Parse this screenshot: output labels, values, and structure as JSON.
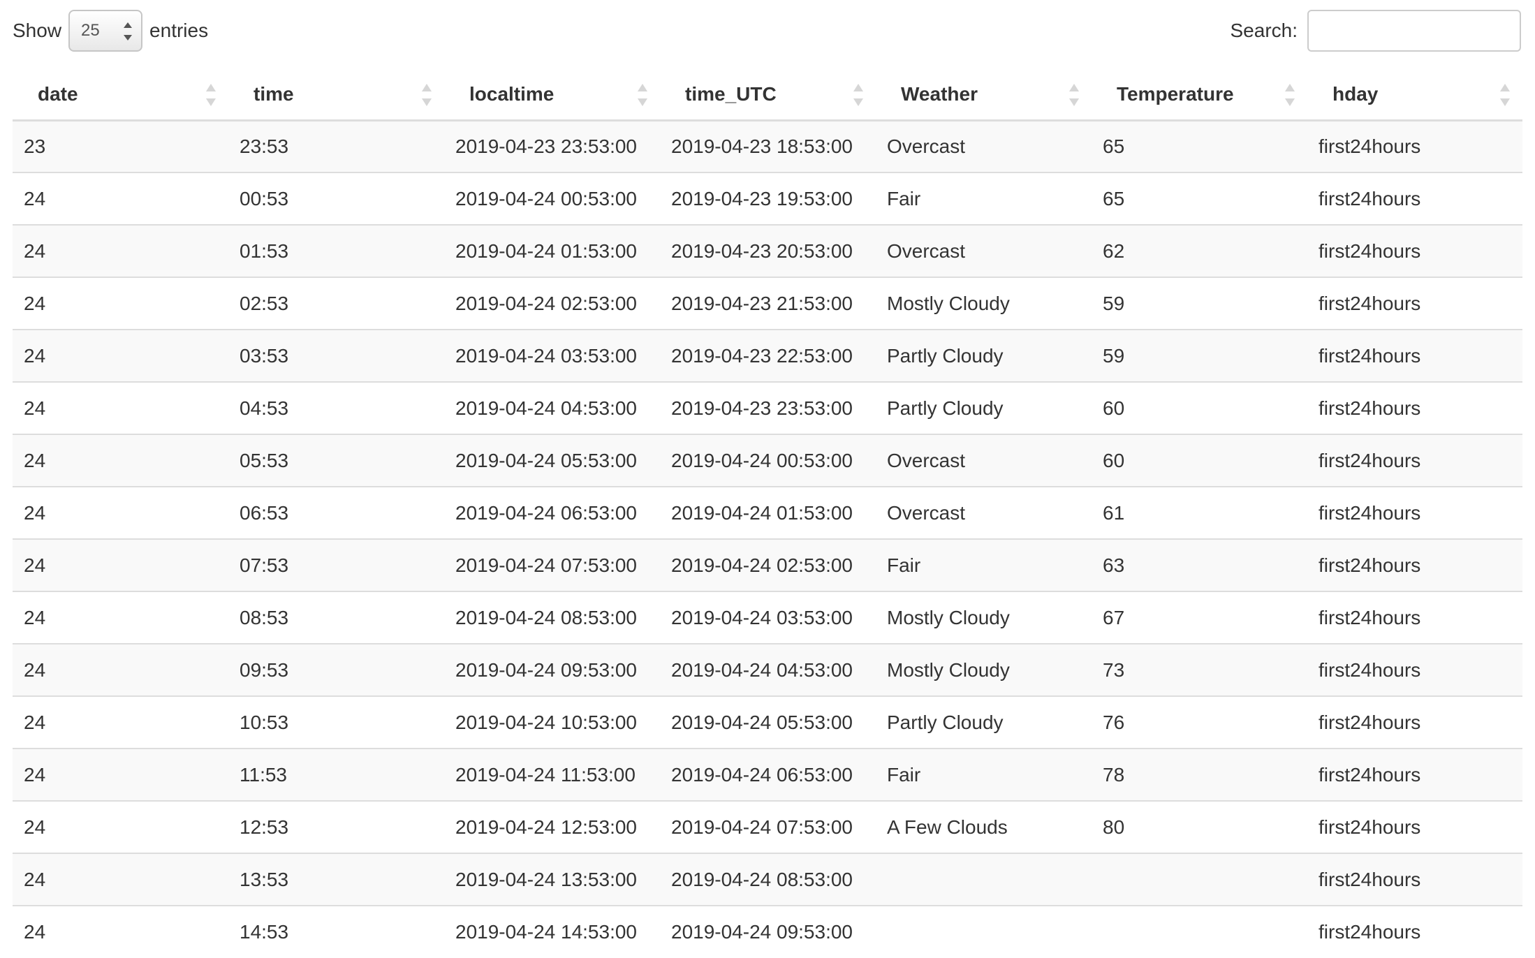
{
  "length_menu": {
    "show_label": "Show",
    "selected": "25",
    "entries_label": "entries"
  },
  "search": {
    "label": "Search:",
    "value": "",
    "placeholder": ""
  },
  "columns": [
    "date",
    "time",
    "localtime",
    "time_UTC",
    "Weather",
    "Temperature",
    "hday"
  ],
  "rows": [
    [
      "23",
      "23:53",
      "2019-04-23 23:53:00",
      "2019-04-23 18:53:00",
      "Overcast",
      "65",
      "first24hours"
    ],
    [
      "24",
      "00:53",
      "2019-04-24 00:53:00",
      "2019-04-23 19:53:00",
      "Fair",
      "65",
      "first24hours"
    ],
    [
      "24",
      "01:53",
      "2019-04-24 01:53:00",
      "2019-04-23 20:53:00",
      "Overcast",
      "62",
      "first24hours"
    ],
    [
      "24",
      "02:53",
      "2019-04-24 02:53:00",
      "2019-04-23 21:53:00",
      "Mostly Cloudy",
      "59",
      "first24hours"
    ],
    [
      "24",
      "03:53",
      "2019-04-24 03:53:00",
      "2019-04-23 22:53:00",
      "Partly Cloudy",
      "59",
      "first24hours"
    ],
    [
      "24",
      "04:53",
      "2019-04-24 04:53:00",
      "2019-04-23 23:53:00",
      "Partly Cloudy",
      "60",
      "first24hours"
    ],
    [
      "24",
      "05:53",
      "2019-04-24 05:53:00",
      "2019-04-24 00:53:00",
      "Overcast",
      "60",
      "first24hours"
    ],
    [
      "24",
      "06:53",
      "2019-04-24 06:53:00",
      "2019-04-24 01:53:00",
      "Overcast",
      "61",
      "first24hours"
    ],
    [
      "24",
      "07:53",
      "2019-04-24 07:53:00",
      "2019-04-24 02:53:00",
      "Fair",
      "63",
      "first24hours"
    ],
    [
      "24",
      "08:53",
      "2019-04-24 08:53:00",
      "2019-04-24 03:53:00",
      "Mostly Cloudy",
      "67",
      "first24hours"
    ],
    [
      "24",
      "09:53",
      "2019-04-24 09:53:00",
      "2019-04-24 04:53:00",
      "Mostly Cloudy",
      "73",
      "first24hours"
    ],
    [
      "24",
      "10:53",
      "2019-04-24 10:53:00",
      "2019-04-24 05:53:00",
      "Partly Cloudy",
      "76",
      "first24hours"
    ],
    [
      "24",
      "11:53",
      "2019-04-24 11:53:00",
      "2019-04-24 06:53:00",
      "Fair",
      "78",
      "first24hours"
    ],
    [
      "24",
      "12:53",
      "2019-04-24 12:53:00",
      "2019-04-24 07:53:00",
      "A Few Clouds",
      "80",
      "first24hours"
    ],
    [
      "24",
      "13:53",
      "2019-04-24 13:53:00",
      "2019-04-24 08:53:00",
      "",
      "",
      "first24hours"
    ],
    [
      "24",
      "14:53",
      "2019-04-24 14:53:00",
      "2019-04-24 09:53:00",
      "",
      "",
      "first24hours"
    ]
  ]
}
